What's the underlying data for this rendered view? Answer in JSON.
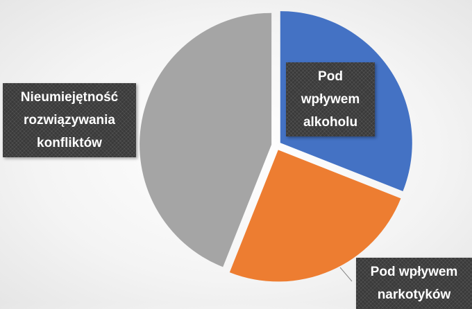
{
  "chart_data": {
    "type": "pie",
    "categories": [
      "Pod wpływem alkoholu",
      "Pod wpływem narkotyków",
      "Nieumiejętność rozwiązywania konfliktów"
    ],
    "values": [
      31,
      25,
      44
    ],
    "colors": [
      "#4472c4",
      "#ed7d31",
      "#a5a5a5"
    ]
  }
}
